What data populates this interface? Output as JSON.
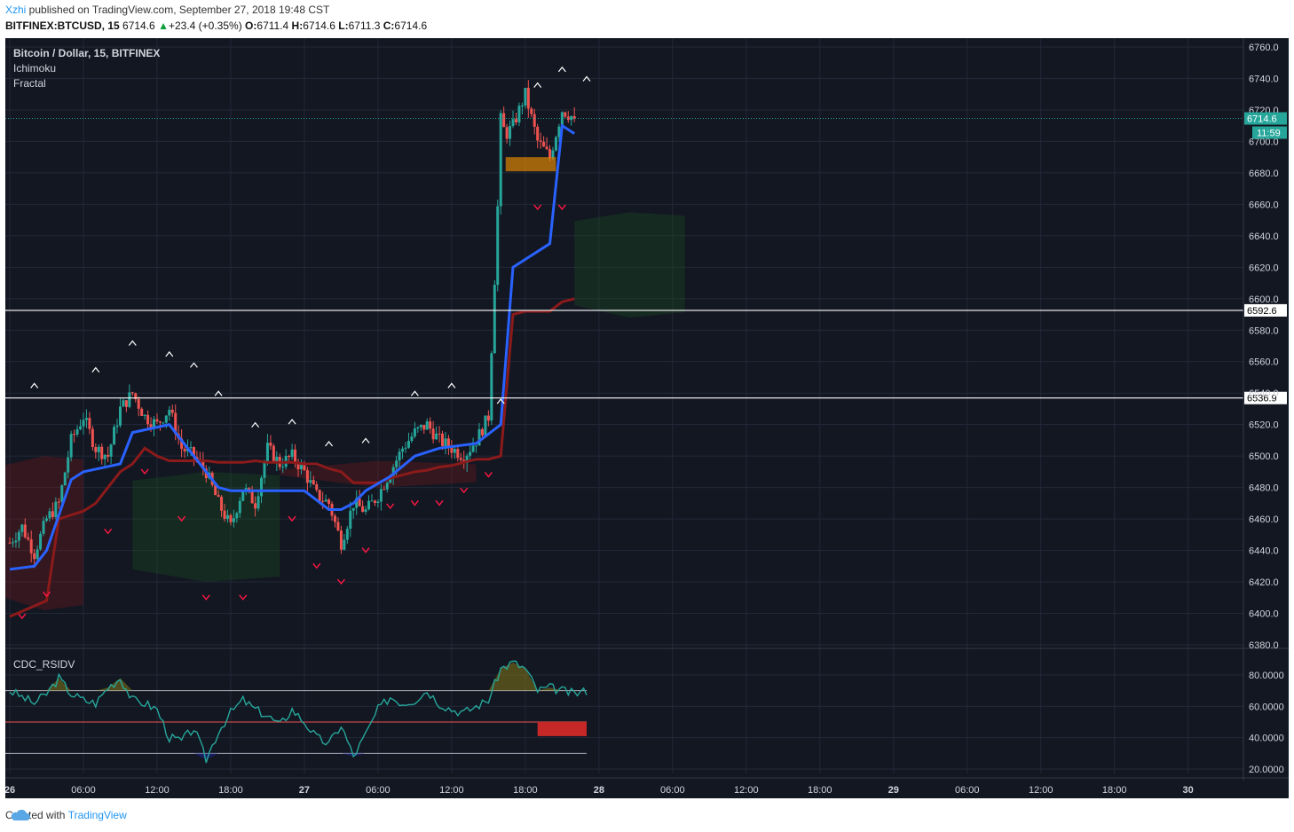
{
  "header": {
    "user": "Xzhi",
    "published_text": " published on TradingView.com, September 27, 2018 19:48 CST",
    "symbol": "BITFINEX:BTCUSD, 15",
    "last": "6714.6",
    "change": "+23.4 (+0.35%)",
    "o_label": "O:",
    "o": "6711.4",
    "h_label": "H:",
    "h": "6714.6",
    "l_label": "L:",
    "l": "6711.3",
    "c_label": "C:",
    "c": "6714.6"
  },
  "legend": {
    "title": "Bitcoin / Dollar, 15, BITFINEX",
    "ind1": "Ichimoku",
    "ind2": "Fractal",
    "sub": "CDC_RSIDV"
  },
  "footer": {
    "created": "Created with",
    "brand": "TradingView"
  },
  "colors": {
    "background": "#131722",
    "grid": "#232838",
    "up_candle": "#26a69a",
    "down_candle": "#ef5350",
    "tenkan": "#2962ff",
    "kijun": "#8b1a1a",
    "price_line": "#26a69a",
    "cloud_bull": "#1b5e20",
    "cloud_bear": "#8b1a1a",
    "rsi_line": "#26a69a"
  },
  "chart_data": [
    {
      "type": "candlestick",
      "title": "Bitcoin / Dollar, 15, BITFINEX",
      "x_tick_labels": [
        "26",
        "06:00",
        "12:00",
        "18:00",
        "27",
        "06:00",
        "12:00",
        "18:00",
        "28",
        "06:00",
        "12:00",
        "18:00",
        "29",
        "06:00",
        "12:00",
        "18:00",
        "30"
      ],
      "y_tick_labels": [
        "6760.0",
        "6740.0",
        "6720.0",
        "6700.0",
        "6680.0",
        "6660.0",
        "6640.0",
        "6620.0",
        "6600.0",
        "6580.0",
        "6560.0",
        "6540.0",
        "6520.0",
        "6500.0",
        "6480.0",
        "6460.0",
        "6440.0",
        "6420.0",
        "6400.0",
        "6380.0"
      ],
      "ylim": [
        6380,
        6762
      ],
      "last_price_label": "6714.6",
      "countdown_label": "11:59",
      "horizontal_levels": [
        {
          "value": 6592.6,
          "label": "6592.6"
        },
        {
          "value": 6536.9,
          "label": "6536.9"
        }
      ],
      "price_path_hours": [
        0,
        1,
        2,
        3,
        4,
        5,
        6,
        7,
        8,
        9,
        10,
        11,
        12,
        13,
        14,
        15,
        16,
        17,
        18,
        19,
        20,
        21,
        22,
        23,
        24,
        25,
        26,
        27,
        28,
        29,
        30,
        31,
        32,
        33,
        34,
        35,
        36,
        37,
        38,
        39,
        40,
        41,
        42,
        43,
        44,
        45,
        46
      ],
      "price_path_values": [
        6445,
        6455,
        6438,
        6460,
        6470,
        6510,
        6525,
        6505,
        6500,
        6530,
        6540,
        6525,
        6520,
        6530,
        6505,
        6500,
        6490,
        6470,
        6455,
        6480,
        6470,
        6505,
        6495,
        6500,
        6490,
        6475,
        6470,
        6445,
        6470,
        6465,
        6475,
        6490,
        6505,
        6515,
        6520,
        6510,
        6505,
        6500,
        6510,
        6525,
        6700,
        6710,
        6730,
        6700,
        6690,
        6720,
        6714.6
      ],
      "tenkan_hours": [
        0,
        2,
        3,
        5,
        6,
        9,
        10,
        13,
        15,
        17,
        18,
        22,
        24,
        26,
        27,
        28,
        29,
        31,
        33,
        35,
        38,
        40,
        41,
        42,
        44,
        45,
        46
      ],
      "tenkan_values": [
        6428,
        6430,
        6440,
        6485,
        6490,
        6495,
        6515,
        6520,
        6500,
        6480,
        6478,
        6478,
        6478,
        6466,
        6466,
        6470,
        6478,
        6487,
        6500,
        6505,
        6508,
        6520,
        6620,
        6625,
        6635,
        6710,
        6705
      ],
      "kijun_hours": [
        0,
        3,
        4,
        6,
        7,
        8,
        9,
        10,
        11,
        12,
        13,
        14,
        15,
        16,
        17,
        18,
        19,
        20,
        21,
        22,
        23,
        24,
        25,
        26,
        27,
        28,
        29,
        30,
        31,
        32,
        33,
        34,
        35,
        36,
        37,
        38,
        39,
        40,
        41,
        42,
        43,
        44,
        45,
        46
      ],
      "kijun_values": [
        6398,
        6408,
        6460,
        6465,
        6470,
        6480,
        6490,
        6495,
        6505,
        6500,
        6497,
        6497,
        6497,
        6497,
        6496,
        6496,
        6496,
        6497,
        6496,
        6496,
        6496,
        6495,
        6495,
        6492,
        6490,
        6483,
        6483,
        6483,
        6486,
        6488,
        6490,
        6491,
        6493,
        6494,
        6496,
        6498,
        6498,
        6500,
        6590,
        6592,
        6592,
        6592,
        6598,
        6600
      ],
      "cloud_segments": [
        {
          "type": "bear",
          "from_hour": -1,
          "to_hour": 6,
          "upper": 6500,
          "lower": 6402
        },
        {
          "type": "bull",
          "from_hour": 10,
          "to_hour": 22,
          "upper": 6490,
          "lower": 6420
        },
        {
          "type": "bear",
          "from_hour": 22,
          "to_hour": 38,
          "upper": 6497,
          "lower": 6480
        },
        {
          "type": "bull",
          "from_hour": 46,
          "to_hour": 55,
          "upper": 6655,
          "lower": 6588
        }
      ],
      "fractal_up_hours": [
        2,
        7,
        10,
        13,
        15,
        17,
        20,
        23,
        26,
        29,
        33,
        36,
        40,
        43,
        45,
        47
      ],
      "fractal_up_values": [
        6545,
        6555,
        6572,
        6565,
        6558,
        6540,
        6520,
        6522,
        6508,
        6510,
        6540,
        6545,
        6535,
        6736,
        6746,
        6740
      ],
      "fractal_down_hours": [
        1,
        3,
        8,
        11,
        14,
        16,
        19,
        23,
        25,
        27,
        29,
        31,
        33,
        35,
        37,
        39,
        43,
        45
      ],
      "fractal_down_values": [
        6398,
        6412,
        6452,
        6490,
        6460,
        6410,
        6410,
        6460,
        6430,
        6420,
        6440,
        6468,
        6470,
        6470,
        6478,
        6488,
        6658,
        6658
      ]
    },
    {
      "type": "line",
      "title": "CDC_RSIDV",
      "y_tick_labels": [
        "80.0000",
        "60.0000",
        "40.0000",
        "20.0000"
      ],
      "ylim": [
        15,
        95
      ],
      "levels": [
        70,
        50,
        30
      ],
      "rsi_hours": [
        0,
        1,
        2,
        3,
        4,
        5,
        6,
        7,
        8,
        9,
        10,
        11,
        12,
        13,
        14,
        15,
        16,
        17,
        18,
        19,
        20,
        21,
        22,
        23,
        24,
        25,
        26,
        27,
        28,
        29,
        30,
        31,
        32,
        33,
        34,
        35,
        36,
        37,
        38,
        39,
        40,
        41,
        42,
        43,
        44,
        45,
        46,
        47
      ],
      "rsi_values": [
        70,
        66,
        62,
        68,
        78,
        68,
        64,
        62,
        72,
        78,
        64,
        62,
        58,
        40,
        38,
        46,
        26,
        44,
        56,
        64,
        58,
        54,
        48,
        58,
        50,
        40,
        36,
        48,
        28,
        42,
        58,
        66,
        62,
        64,
        70,
        62,
        58,
        56,
        60,
        64,
        84,
        88,
        84,
        70,
        72,
        70,
        68,
        70
      ]
    }
  ]
}
